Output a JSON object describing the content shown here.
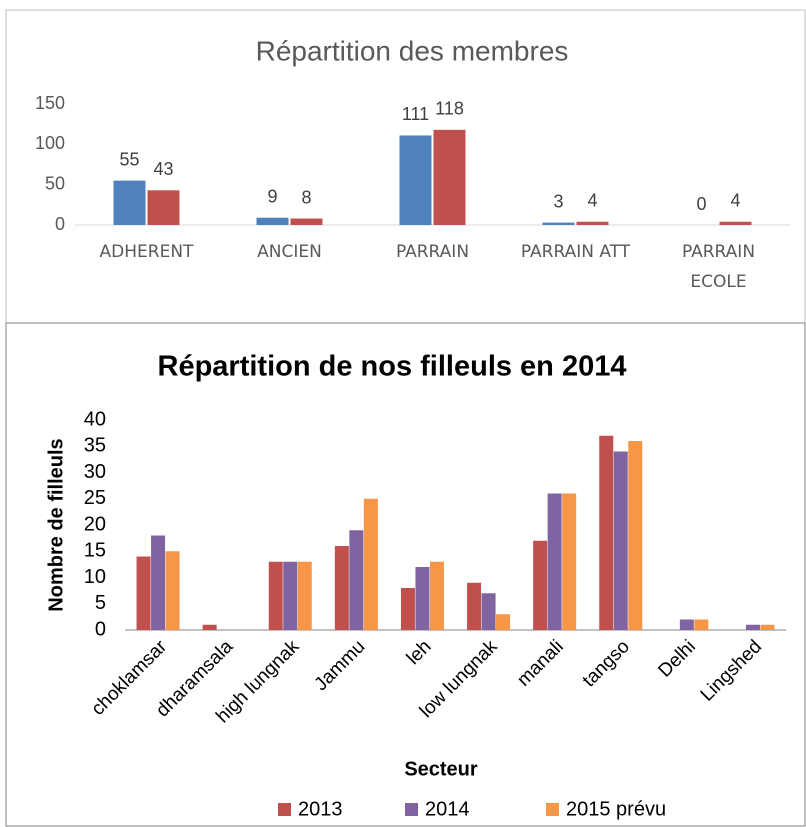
{
  "chart_data": [
    {
      "type": "bar",
      "title": "Répartition des membres",
      "categories": [
        "ADHERENT",
        "ANCIEN",
        "PARRAIN",
        "PARRAIN ATT",
        "PARRAIN ECOLE"
      ],
      "series": [
        {
          "color": "#4f81bd",
          "values": [
            55,
            9,
            111,
            3,
            0
          ]
        },
        {
          "color": "#c0504d",
          "values": [
            43,
            8,
            118,
            4,
            4
          ]
        }
      ],
      "ylim": [
        0,
        150
      ],
      "yticks": [
        0,
        50,
        100,
        150
      ],
      "grid": false,
      "data_labels": true
    },
    {
      "type": "bar",
      "title": "Répartition de nos filleuls en 2014",
      "ylabel": "Nombre de filleuls",
      "xlabel": "Secteur",
      "categories": [
        "choklamsar",
        "dharamsala",
        "high lungnak",
        "Jammu",
        "leh",
        "low lungnak",
        "manali",
        "tangso",
        "Delhi",
        "Lingshed"
      ],
      "series": [
        {
          "name": "2013",
          "color": "#c0504d",
          "values": [
            14,
            1,
            13,
            16,
            8,
            9,
            17,
            37,
            0,
            0
          ]
        },
        {
          "name": "2014",
          "color": "#8064a2",
          "values": [
            18,
            0,
            13,
            19,
            12,
            7,
            26,
            34,
            2,
            1
          ]
        },
        {
          "name": "2015 prévu",
          "color": "#f79646",
          "values": [
            15,
            0,
            13,
            25,
            13,
            3,
            26,
            36,
            2,
            1
          ]
        }
      ],
      "ylim": [
        0,
        40
      ],
      "yticks": [
        0,
        5,
        10,
        15,
        20,
        25,
        30,
        35,
        40
      ],
      "grid": false,
      "legend": "bottom"
    }
  ]
}
